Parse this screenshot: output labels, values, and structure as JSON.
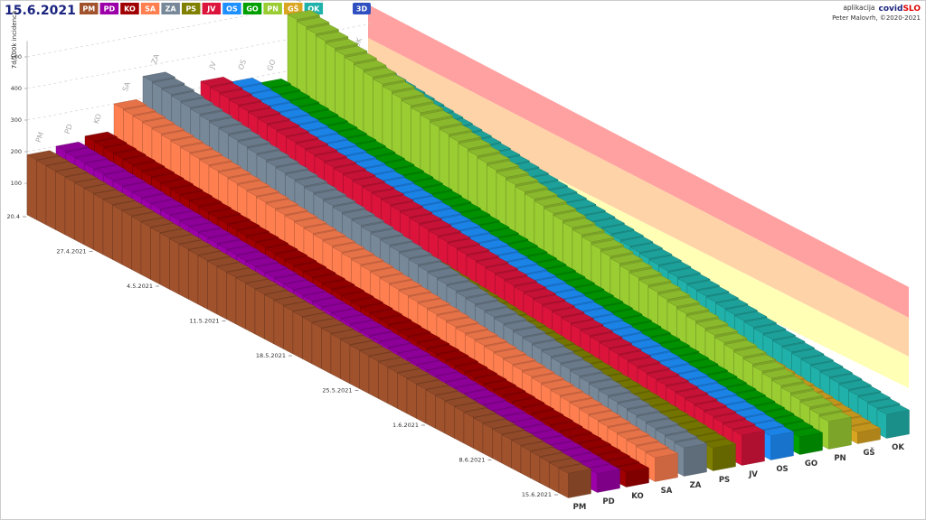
{
  "chart_data": {
    "type": "bar3d",
    "title": "15.6.2021",
    "ylabel": "7d/100k incidenca",
    "ylim": [
      0,
      550
    ],
    "yticks": [
      100,
      200,
      300,
      400,
      500
    ],
    "categories": [
      "20.4",
      null,
      null,
      null,
      null,
      null,
      null,
      "27.4.2021",
      null,
      null,
      null,
      null,
      null,
      null,
      "4.5.2021",
      null,
      null,
      null,
      null,
      null,
      null,
      "11.5.2021",
      null,
      null,
      null,
      null,
      null,
      null,
      "18.5.2021",
      null,
      null,
      null,
      null,
      null,
      null,
      "25.5.2021",
      null,
      null,
      null,
      null,
      null,
      null,
      "1.6.2021",
      null,
      null,
      null,
      null,
      null,
      null,
      "8.6.2021",
      null,
      null,
      null,
      null,
      null,
      null,
      "15.6.2021"
    ],
    "series": [
      {
        "name": "PM",
        "color": "#a0522d",
        "values": [
          190,
          188,
          186,
          184,
          182,
          180,
          178,
          176,
          174,
          172,
          170,
          168,
          166,
          164,
          162,
          160,
          158,
          156,
          154,
          152,
          150,
          148,
          146,
          144,
          142,
          140,
          138,
          136,
          134,
          132,
          130,
          128,
          126,
          124,
          122,
          120,
          118,
          116,
          114,
          112,
          110,
          108,
          106,
          104,
          102,
          100,
          98,
          96,
          94,
          92,
          90,
          88,
          86,
          84,
          82,
          80,
          78
        ]
      },
      {
        "name": "PD",
        "color": "#9c00a8",
        "values": [
          200,
          197,
          195,
          192,
          190,
          187,
          185,
          182,
          180,
          177,
          175,
          172,
          170,
          167,
          165,
          162,
          160,
          157,
          155,
          152,
          150,
          147,
          145,
          142,
          140,
          137,
          135,
          132,
          130,
          127,
          125,
          122,
          120,
          117,
          115,
          112,
          110,
          107,
          105,
          102,
          100,
          97,
          95,
          92,
          90,
          87,
          85,
          82,
          80,
          77,
          75,
          72,
          70,
          67,
          65,
          62,
          60
        ]
      },
      {
        "name": "KO",
        "color": "#a00000",
        "values": [
          215,
          212,
          209,
          206,
          203,
          200,
          197,
          194,
          191,
          188,
          185,
          182,
          179,
          176,
          173,
          170,
          167,
          164,
          161,
          158,
          155,
          152,
          149,
          146,
          143,
          140,
          137,
          134,
          131,
          128,
          125,
          122,
          119,
          116,
          113,
          110,
          107,
          104,
          101,
          98,
          95,
          92,
          89,
          86,
          83,
          80,
          77,
          74,
          71,
          68,
          65,
          62,
          59,
          56,
          53,
          50,
          47
        ]
      },
      {
        "name": "SA",
        "color": "#ff7f50",
        "values": [
          300,
          296,
          292,
          288,
          284,
          280,
          276,
          272,
          268,
          264,
          260,
          256,
          252,
          248,
          244,
          240,
          236,
          232,
          228,
          224,
          220,
          216,
          212,
          208,
          204,
          200,
          196,
          192,
          188,
          184,
          180,
          176,
          172,
          168,
          164,
          160,
          156,
          152,
          148,
          144,
          140,
          136,
          132,
          128,
          124,
          120,
          116,
          112,
          108,
          104,
          100,
          96,
          92,
          88,
          84,
          80,
          76
        ]
      },
      {
        "name": "ZA",
        "color": "#778899",
        "values": [
          370,
          365,
          360,
          355,
          350,
          345,
          340,
          335,
          330,
          325,
          320,
          315,
          310,
          305,
          300,
          295,
          290,
          285,
          280,
          275,
          270,
          265,
          260,
          255,
          250,
          245,
          240,
          235,
          230,
          225,
          220,
          215,
          210,
          205,
          200,
          195,
          190,
          185,
          180,
          175,
          170,
          165,
          160,
          155,
          150,
          145,
          140,
          135,
          130,
          125,
          120,
          115,
          110,
          105,
          100,
          95,
          90
        ]
      },
      {
        "name": "PS",
        "color": "#808000",
        "values": [
          240,
          237,
          234,
          231,
          228,
          225,
          222,
          219,
          216,
          213,
          210,
          207,
          204,
          201,
          198,
          195,
          192,
          189,
          186,
          183,
          180,
          177,
          174,
          171,
          168,
          165,
          162,
          159,
          156,
          153,
          150,
          147,
          144,
          141,
          138,
          135,
          132,
          129,
          126,
          123,
          120,
          117,
          114,
          111,
          108,
          105,
          102,
          99,
          96,
          93,
          90,
          87,
          84,
          81,
          78,
          75,
          72
        ]
      },
      {
        "name": "JV",
        "color": "#dc143c",
        "values": [
          320,
          316,
          312,
          308,
          304,
          300,
          296,
          292,
          288,
          284,
          280,
          276,
          272,
          268,
          264,
          260,
          256,
          252,
          248,
          244,
          240,
          236,
          232,
          228,
          224,
          220,
          216,
          212,
          208,
          204,
          200,
          196,
          192,
          188,
          184,
          180,
          176,
          172,
          168,
          164,
          160,
          156,
          152,
          148,
          144,
          140,
          136,
          132,
          128,
          124,
          120,
          116,
          112,
          108,
          104,
          100,
          96
        ]
      },
      {
        "name": "OS",
        "color": "#1e90ff",
        "values": [
          300,
          296,
          292,
          288,
          284,
          280,
          276,
          272,
          268,
          264,
          260,
          256,
          252,
          248,
          244,
          240,
          236,
          232,
          228,
          224,
          220,
          216,
          212,
          208,
          204,
          200,
          196,
          192,
          188,
          184,
          180,
          176,
          172,
          168,
          164,
          160,
          156,
          152,
          148,
          144,
          140,
          136,
          132,
          128,
          124,
          120,
          116,
          112,
          108,
          104,
          100,
          96,
          92,
          88,
          84,
          80,
          76
        ]
      },
      {
        "name": "GO",
        "color": "#00a000",
        "values": [
          280,
          276,
          272,
          268,
          264,
          260,
          256,
          252,
          248,
          244,
          240,
          236,
          232,
          228,
          224,
          220,
          216,
          212,
          208,
          204,
          200,
          196,
          192,
          188,
          184,
          180,
          176,
          172,
          168,
          164,
          160,
          156,
          152,
          148,
          144,
          140,
          136,
          132,
          128,
          124,
          120,
          116,
          112,
          108,
          104,
          100,
          96,
          92,
          88,
          84,
          80,
          76,
          72,
          68,
          64,
          60,
          56
        ]
      },
      {
        "name": "PN",
        "color": "#9acd32",
        "values": [
          480,
          473,
          466,
          459,
          452,
          445,
          438,
          431,
          424,
          417,
          410,
          403,
          396,
          389,
          382,
          375,
          368,
          361,
          354,
          347,
          340,
          333,
          326,
          319,
          312,
          305,
          298,
          291,
          284,
          277,
          270,
          263,
          256,
          249,
          242,
          235,
          228,
          221,
          214,
          207,
          200,
          193,
          186,
          179,
          172,
          165,
          158,
          151,
          144,
          137,
          130,
          123,
          116,
          109,
          102,
          95,
          88
        ]
      },
      {
        "name": "GŠ",
        "color": "#daa520",
        "values": [
          260,
          256,
          252,
          248,
          244,
          240,
          236,
          232,
          228,
          224,
          220,
          216,
          212,
          208,
          204,
          200,
          196,
          192,
          188,
          184,
          180,
          176,
          172,
          168,
          164,
          160,
          156,
          152,
          148,
          144,
          140,
          136,
          132,
          128,
          124,
          120,
          116,
          112,
          108,
          104,
          100,
          96,
          92,
          88,
          84,
          80,
          76,
          72,
          68,
          64,
          60,
          56,
          52,
          48,
          44,
          40,
          36
        ]
      },
      {
        "name": "OK",
        "color": "#20b2aa",
        "values": [
          300,
          296,
          292,
          288,
          284,
          280,
          276,
          272,
          268,
          264,
          260,
          256,
          252,
          248,
          244,
          240,
          236,
          232,
          228,
          224,
          220,
          216,
          212,
          208,
          204,
          200,
          196,
          192,
          188,
          184,
          180,
          176,
          172,
          168,
          164,
          160,
          156,
          152,
          148,
          144,
          140,
          136,
          132,
          128,
          124,
          120,
          116,
          112,
          108,
          104,
          100,
          96,
          92,
          88,
          84,
          80,
          76
        ]
      }
    ]
  },
  "view_button": "3D",
  "app": {
    "label": "aplikacija",
    "brand": "covid",
    "brand_suffix": "SLO",
    "author": "Peter Malovrh, ©2020-2021"
  }
}
